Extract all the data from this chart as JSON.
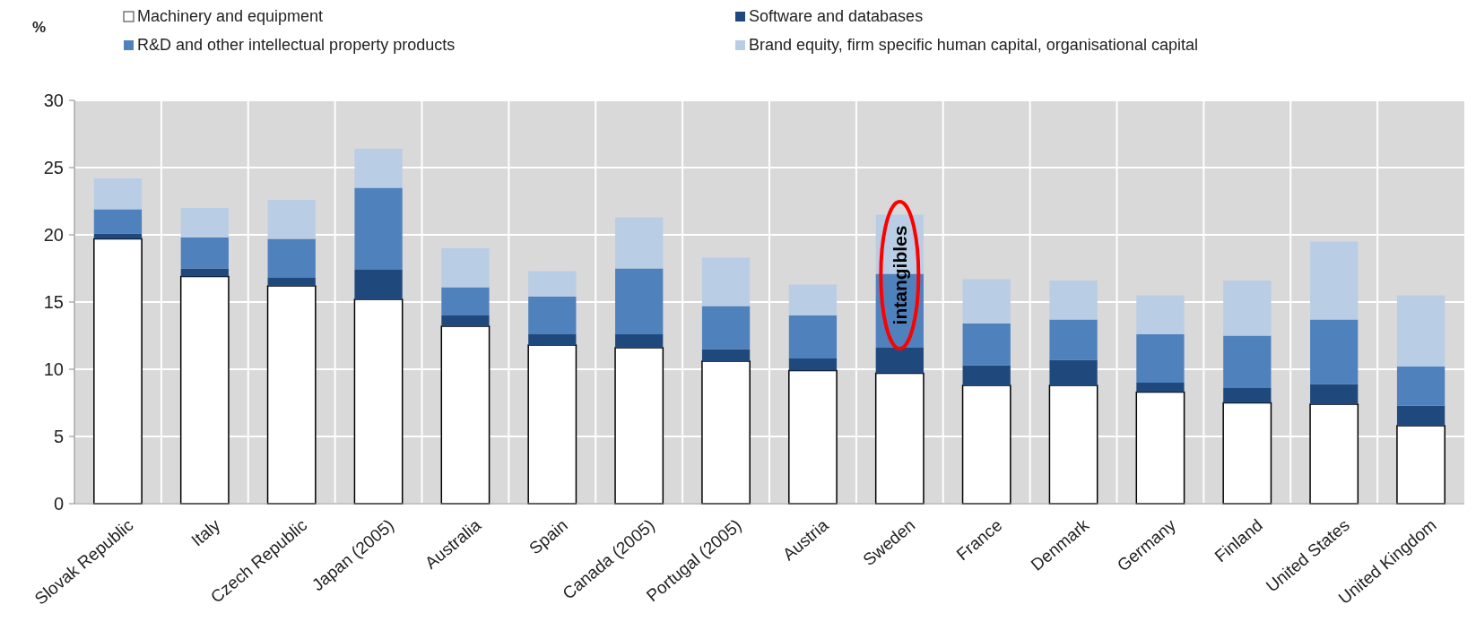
{
  "chart_data": {
    "type": "bar",
    "stacked": true,
    "ylabel": "%",
    "categories": [
      "Slovak Republic",
      "Italy",
      "Czech Republic",
      "Japan (2005)",
      "Australia",
      "Spain",
      "Canada (2005)",
      "Portugal (2005)",
      "Austria",
      "Sweden",
      "France",
      "Denmark",
      "Germany",
      "Finland",
      "United States",
      "United Kingdom"
    ],
    "series": [
      {
        "name": "Machinery and equipment",
        "color": "#ffffff",
        "values": [
          19.7,
          16.9,
          16.2,
          15.2,
          13.2,
          11.8,
          11.6,
          10.6,
          9.9,
          9.7,
          8.8,
          8.8,
          8.3,
          7.5,
          7.4,
          5.8
        ]
      },
      {
        "name": "Software and databases",
        "color": "#1f497d",
        "values": [
          0.4,
          0.6,
          0.6,
          2.2,
          0.8,
          0.8,
          1.0,
          0.9,
          0.9,
          1.9,
          1.5,
          1.9,
          0.7,
          1.1,
          1.5,
          1.5
        ]
      },
      {
        "name": "R&D and other intellectual property products",
        "color": "#4f81bd",
        "values": [
          1.8,
          2.3,
          2.9,
          6.1,
          2.1,
          2.8,
          4.9,
          3.2,
          3.2,
          5.5,
          3.1,
          3.0,
          3.6,
          3.9,
          4.8,
          2.9
        ]
      },
      {
        "name": "Brand equity, firm specific human capital, organisational capital",
        "color": "#b9cde5",
        "values": [
          2.3,
          2.2,
          2.9,
          2.9,
          2.9,
          1.9,
          3.8,
          3.6,
          2.3,
          4.4,
          3.3,
          2.9,
          2.9,
          4.1,
          5.8,
          5.3
        ]
      }
    ],
    "ylim": [
      0,
      30
    ],
    "yticks": [
      0,
      5,
      10,
      15,
      20,
      25,
      30
    ],
    "grid": true,
    "legend": "top",
    "annotations": [
      {
        "text": "intangibles",
        "x": "Sweden",
        "y": 17
      }
    ]
  }
}
